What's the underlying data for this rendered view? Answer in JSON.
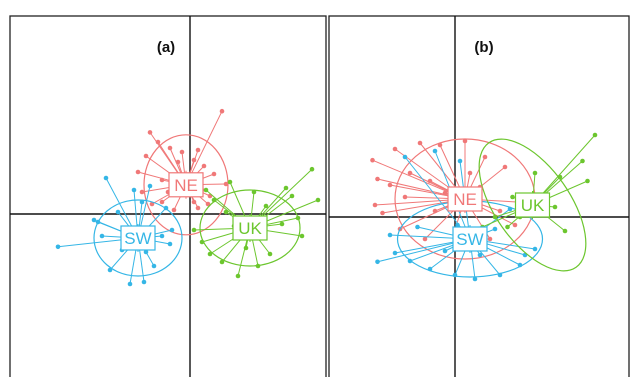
{
  "figure": {
    "panels": [
      {
        "panel_label": "(a)"
      },
      {
        "panel_label": "(b)"
      }
    ]
  },
  "chart_data": [
    {
      "type": "scatter",
      "plot_style": "discriminant-analysis scatter with group centroids, spokes and 95% ellipses",
      "title": "(a)",
      "xlabel": "",
      "ylabel": "",
      "axes": "crosshair lines through origin, no ticks",
      "grid": false,
      "colors": {
        "NE": "#F07878",
        "SW": "#35B6E6",
        "UK": "#6CC62E"
      },
      "series": [
        {
          "name": "NE",
          "centroid": [
            -0.1,
            0.73
          ],
          "ellipse": {
            "rx": 1.05,
            "ry": 1.25,
            "angle": 0
          },
          "points": [
            [
              0.8,
              2.57
            ],
            [
              -1.0,
              2.04
            ],
            [
              -0.8,
              1.8
            ],
            [
              -0.5,
              1.65
            ],
            [
              -0.2,
              1.55
            ],
            [
              0.2,
              1.6
            ],
            [
              -0.3,
              1.3
            ],
            [
              0.1,
              1.35
            ],
            [
              -1.1,
              1.45
            ],
            [
              0.35,
              1.2
            ],
            [
              -0.7,
              0.85
            ],
            [
              0.6,
              1.0
            ],
            [
              -1.2,
              0.55
            ],
            [
              0.5,
              0.45
            ],
            [
              -0.7,
              0.3
            ],
            [
              0.1,
              0.3
            ],
            [
              -0.4,
              0.1
            ],
            [
              0.3,
              0.6
            ],
            [
              -1.3,
              1.05
            ],
            [
              0.9,
              0.75
            ],
            [
              -0.1,
              0.95
            ],
            [
              -0.55,
              0.55
            ],
            [
              0.2,
              0.15
            ],
            [
              -0.95,
              0.25
            ],
            [
              0.45,
              0.25
            ]
          ]
        },
        {
          "name": "SW",
          "centroid": [
            -1.3,
            -0.6
          ],
          "ellipse": {
            "rx": 1.1,
            "ry": 0.95,
            "angle": 0
          },
          "points": [
            [
              -3.3,
              -0.82
            ],
            [
              -1.5,
              -1.75
            ],
            [
              -1.15,
              -1.7
            ],
            [
              -2.0,
              -1.4
            ],
            [
              -0.9,
              -1.3
            ],
            [
              -1.7,
              -0.9
            ],
            [
              -0.5,
              -0.75
            ],
            [
              -2.3,
              -0.2
            ],
            [
              -1.8,
              0.05
            ],
            [
              -1.2,
              0.3
            ],
            [
              -1.4,
              0.6
            ],
            [
              -1.0,
              0.7
            ],
            [
              -2.1,
              0.9
            ],
            [
              -0.6,
              0.15
            ],
            [
              -2.2,
              -0.55
            ],
            [
              -0.45,
              -0.4
            ],
            [
              -1.6,
              -0.35
            ],
            [
              -1.1,
              -0.95
            ],
            [
              -2.4,
              -0.15
            ],
            [
              -0.7,
              -0.55
            ]
          ]
        },
        {
          "name": "UK",
          "centroid": [
            1.5,
            -0.35
          ],
          "ellipse": {
            "rx": 1.25,
            "ry": 0.95,
            "angle": 0
          },
          "points": [
            [
              3.05,
              1.12
            ],
            [
              2.55,
              0.45
            ],
            [
              2.7,
              -0.1
            ],
            [
              3.2,
              0.35
            ],
            [
              1.2,
              -1.55
            ],
            [
              0.8,
              -1.2
            ],
            [
              0.3,
              -0.7
            ],
            [
              0.1,
              -0.4
            ],
            [
              0.6,
              0.35
            ],
            [
              1.6,
              0.55
            ],
            [
              1.0,
              0.8
            ],
            [
              2.0,
              -1.0
            ],
            [
              1.1,
              -0.3
            ],
            [
              2.3,
              -0.25
            ],
            [
              1.9,
              0.2
            ],
            [
              0.5,
              -1.0
            ],
            [
              1.4,
              -0.85
            ],
            [
              2.8,
              -0.55
            ],
            [
              0.9,
              0.05
            ],
            [
              0.4,
              0.6
            ],
            [
              2.4,
              0.65
            ],
            [
              1.7,
              -1.3
            ]
          ]
        }
      ]
    },
    {
      "type": "scatter",
      "plot_style": "discriminant-analysis scatter with group centroids, spokes and 95% ellipses",
      "title": "(b)",
      "xlabel": "",
      "ylabel": "",
      "axes": "crosshair lines through origin, no ticks",
      "grid": false,
      "colors": {
        "NE": "#F07878",
        "SW": "#35B6E6",
        "UK": "#6CC62E"
      },
      "series": [
        {
          "name": "NE",
          "centroid": [
            0.2,
            0.45
          ],
          "ellipse": {
            "rx": 1.4,
            "ry": 1.5,
            "angle": 0
          },
          "points": [
            [
              -1.65,
              1.42
            ],
            [
              -1.2,
              1.7
            ],
            [
              -0.7,
              1.85
            ],
            [
              -0.3,
              1.8
            ],
            [
              0.2,
              1.9
            ],
            [
              0.6,
              1.5
            ],
            [
              -1.55,
              0.95
            ],
            [
              -1.3,
              0.8
            ],
            [
              -0.9,
              1.1
            ],
            [
              -0.5,
              0.9
            ],
            [
              -1.0,
              0.5
            ],
            [
              -1.6,
              0.3
            ],
            [
              -0.4,
              0.15
            ],
            [
              0.3,
              1.1
            ],
            [
              0.5,
              0.75
            ],
            [
              1.0,
              1.25
            ],
            [
              1.6,
              0.35
            ],
            [
              -1.1,
              -0.3
            ],
            [
              -0.6,
              -0.55
            ],
            [
              1.2,
              -0.2
            ],
            [
              -0.2,
              0.6
            ],
            [
              0.0,
              -0.3
            ],
            [
              0.7,
              -0.55
            ],
            [
              -1.45,
              0.1
            ],
            [
              0.9,
              0.15
            ]
          ]
        },
        {
          "name": "SW",
          "centroid": [
            0.3,
            -0.55
          ],
          "ellipse": {
            "rx": 1.45,
            "ry": 0.95,
            "angle": 0
          },
          "points": [
            [
              -1.55,
              -1.12
            ],
            [
              -1.2,
              -0.9
            ],
            [
              -0.9,
              -1.1
            ],
            [
              -0.5,
              -1.3
            ],
            [
              0.0,
              -1.45
            ],
            [
              0.4,
              -1.55
            ],
            [
              0.9,
              -1.45
            ],
            [
              1.3,
              -1.2
            ],
            [
              1.6,
              -0.8
            ],
            [
              -1.0,
              1.5
            ],
            [
              -0.4,
              1.65
            ],
            [
              0.1,
              1.4
            ],
            [
              -1.3,
              -0.45
            ],
            [
              0.8,
              -0.3
            ],
            [
              1.1,
              0.2
            ],
            [
              -0.2,
              -0.85
            ],
            [
              0.5,
              -0.95
            ],
            [
              1.4,
              -0.95
            ],
            [
              0.05,
              -0.2
            ],
            [
              -0.75,
              -0.25
            ]
          ]
        },
        {
          "name": "UK",
          "centroid": [
            1.55,
            0.3
          ],
          "ellipse": {
            "rx": 0.75,
            "ry": 1.9,
            "angle": 35
          },
          "points": [
            [
              2.8,
              2.05
            ],
            [
              2.55,
              1.4
            ],
            [
              2.65,
              0.9
            ],
            [
              2.1,
              1.0
            ],
            [
              1.6,
              1.1
            ],
            [
              2.0,
              0.25
            ],
            [
              1.15,
              0.5
            ],
            [
              0.8,
              0.0
            ],
            [
              0.55,
              -0.25
            ],
            [
              1.05,
              -0.25
            ],
            [
              2.2,
              -0.35
            ],
            [
              1.3,
              0.0
            ]
          ]
        }
      ]
    }
  ]
}
